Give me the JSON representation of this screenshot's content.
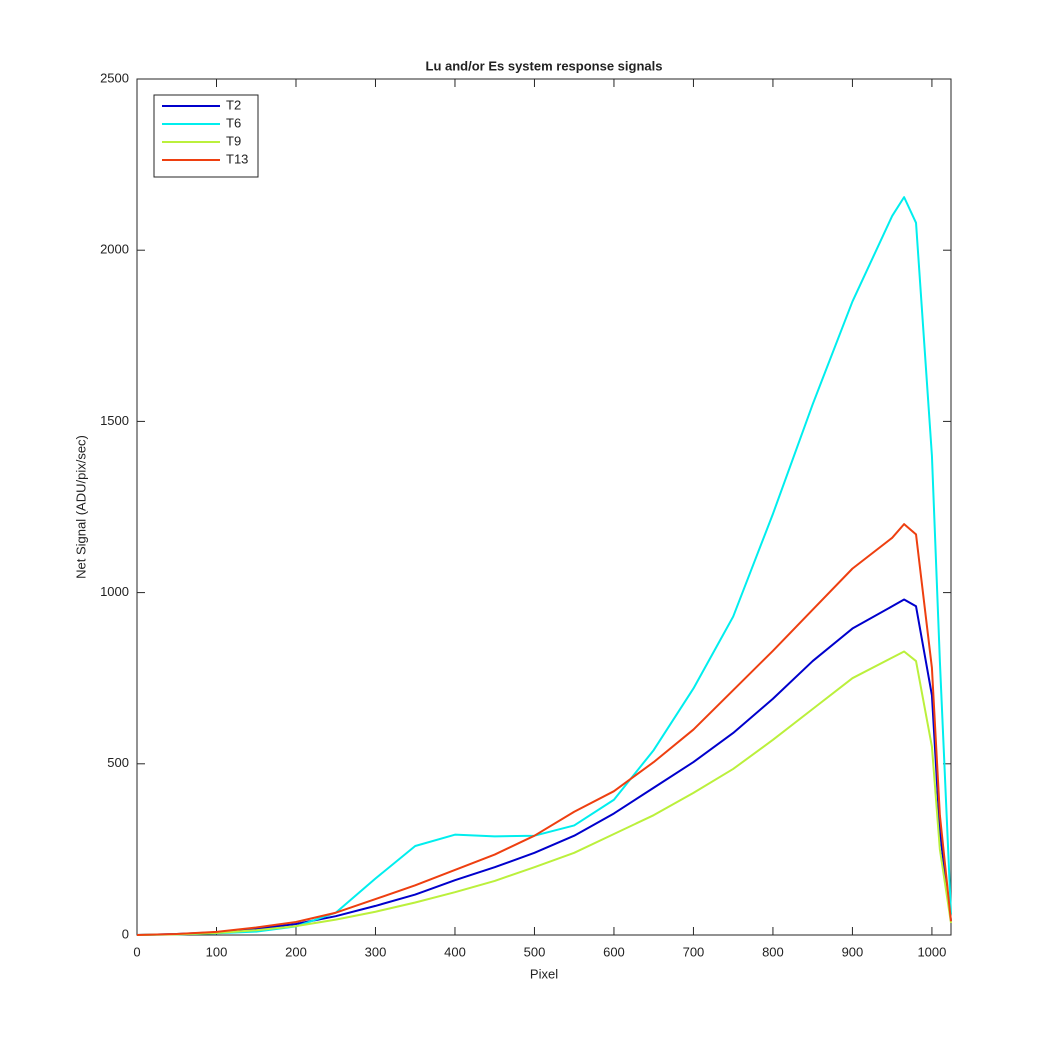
{
  "chart_data": {
    "type": "line",
    "title": "Lu and/or Es system response signals",
    "xlabel": "Pixel",
    "ylabel": "Net Signal (ADU/pix/sec)",
    "x": [
      0,
      50,
      100,
      150,
      200,
      250,
      300,
      350,
      400,
      450,
      500,
      550,
      600,
      650,
      700,
      750,
      800,
      850,
      900,
      950,
      965,
      980,
      1000,
      1010,
      1024
    ],
    "series": [
      {
        "name": "T2",
        "color": "#0000cc",
        "values": [
          0,
          3,
          8,
          18,
          32,
          55,
          85,
          118,
          160,
          198,
          240,
          290,
          355,
          430,
          505,
          590,
          690,
          800,
          895,
          960,
          980,
          960,
          700,
          300,
          40
        ]
      },
      {
        "name": "T6",
        "color": "#00eeee",
        "values": [
          0,
          2,
          5,
          10,
          25,
          65,
          165,
          260,
          293,
          288,
          290,
          320,
          395,
          540,
          720,
          930,
          1230,
          1550,
          1850,
          2100,
          2155,
          2080,
          1400,
          800,
          60
        ]
      },
      {
        "name": "T9",
        "color": "#bbf03c",
        "values": [
          0,
          2,
          6,
          14,
          26,
          45,
          68,
          95,
          125,
          158,
          198,
          240,
          295,
          350,
          415,
          485,
          570,
          660,
          750,
          810,
          828,
          800,
          550,
          250,
          35
        ]
      },
      {
        "name": "T13",
        "color": "#ee3f10",
        "values": [
          0,
          3,
          9,
          22,
          38,
          65,
          105,
          145,
          190,
          235,
          290,
          360,
          420,
          505,
          600,
          715,
          830,
          950,
          1070,
          1160,
          1200,
          1170,
          780,
          350,
          40
        ]
      }
    ],
    "xlim": [
      0,
      1024
    ],
    "xticks": [
      0,
      100,
      200,
      300,
      400,
      500,
      600,
      700,
      800,
      900,
      1000
    ],
    "ylim": [
      0,
      2500
    ],
    "yticks": [
      0,
      500,
      1000,
      1500,
      2000,
      2500
    ],
    "legend": "upper-left"
  }
}
